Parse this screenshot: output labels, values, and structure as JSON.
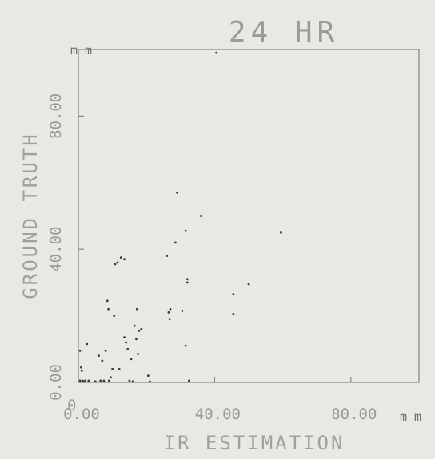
{
  "chart_data": {
    "type": "scatter",
    "title": "24 HR",
    "xlabel": "IR ESTIMATION",
    "ylabel": "GROUND TRUTH",
    "x_unit": "m m",
    "y_unit": "m m",
    "xlim": [
      0,
      100
    ],
    "ylim": [
      0,
      100
    ],
    "x_ticks": [
      0,
      40,
      80
    ],
    "y_ticks": [
      0,
      40,
      80
    ],
    "x_tick_labels": [
      "0.00",
      "40.00",
      "80.00"
    ],
    "y_tick_labels": [
      "0.00",
      "40.00",
      "80.00"
    ],
    "x_origin_label": "0",
    "grid": false,
    "points": [
      {
        "x": 0.5,
        "y": 0.5
      },
      {
        "x": 0.8,
        "y": 4.5
      },
      {
        "x": 1.0,
        "y": 3.5
      },
      {
        "x": 0.5,
        "y": 9.5
      },
      {
        "x": 1.2,
        "y": 0.5
      },
      {
        "x": 1.5,
        "y": 0.3
      },
      {
        "x": 2.0,
        "y": 0.5
      },
      {
        "x": 2.5,
        "y": 11.5
      },
      {
        "x": 3.0,
        "y": 0.5
      },
      {
        "x": 5.0,
        "y": 0.3
      },
      {
        "x": 6.0,
        "y": 8.0
      },
      {
        "x": 6.5,
        "y": 0.5
      },
      {
        "x": 7.0,
        "y": 6.5
      },
      {
        "x": 7.5,
        "y": 0.5
      },
      {
        "x": 8.0,
        "y": 9.5
      },
      {
        "x": 8.5,
        "y": 24.5
      },
      {
        "x": 8.8,
        "y": 22.0
      },
      {
        "x": 9.0,
        "y": 0.5
      },
      {
        "x": 9.5,
        "y": 1.5
      },
      {
        "x": 10.0,
        "y": 4.0
      },
      {
        "x": 10.5,
        "y": 20.0
      },
      {
        "x": 10.8,
        "y": 35.5
      },
      {
        "x": 11.5,
        "y": 36.0
      },
      {
        "x": 12.0,
        "y": 4.0
      },
      {
        "x": 12.5,
        "y": 37.5
      },
      {
        "x": 13.5,
        "y": 37.0
      },
      {
        "x": 13.5,
        "y": 13.5
      },
      {
        "x": 14.0,
        "y": 12.0
      },
      {
        "x": 14.5,
        "y": 10.0
      },
      {
        "x": 15.0,
        "y": 0.5
      },
      {
        "x": 15.5,
        "y": 7.0
      },
      {
        "x": 16.0,
        "y": 0.3
      },
      {
        "x": 16.5,
        "y": 17.0
      },
      {
        "x": 17.0,
        "y": 13.0
      },
      {
        "x": 17.2,
        "y": 22.0
      },
      {
        "x": 17.5,
        "y": 8.5
      },
      {
        "x": 17.8,
        "y": 15.5
      },
      {
        "x": 18.5,
        "y": 16.0
      },
      {
        "x": 20.5,
        "y": 2.0
      },
      {
        "x": 21.0,
        "y": 0.3
      },
      {
        "x": 26.0,
        "y": 38.0
      },
      {
        "x": 26.5,
        "y": 21.0
      },
      {
        "x": 26.8,
        "y": 19.0
      },
      {
        "x": 27.0,
        "y": 22.0
      },
      {
        "x": 28.5,
        "y": 42.0
      },
      {
        "x": 29.0,
        "y": 57.0
      },
      {
        "x": 30.5,
        "y": 21.5
      },
      {
        "x": 31.5,
        "y": 45.5
      },
      {
        "x": 31.5,
        "y": 11.0
      },
      {
        "x": 32.0,
        "y": 30.0
      },
      {
        "x": 32.0,
        "y": 31.0
      },
      {
        "x": 32.5,
        "y": 0.5
      },
      {
        "x": 36.0,
        "y": 50.0
      },
      {
        "x": 40.5,
        "y": 99.0
      },
      {
        "x": 45.5,
        "y": 26.5
      },
      {
        "x": 45.5,
        "y": 20.5
      },
      {
        "x": 50.0,
        "y": 29.5
      },
      {
        "x": 59.5,
        "y": 45.0
      }
    ]
  }
}
